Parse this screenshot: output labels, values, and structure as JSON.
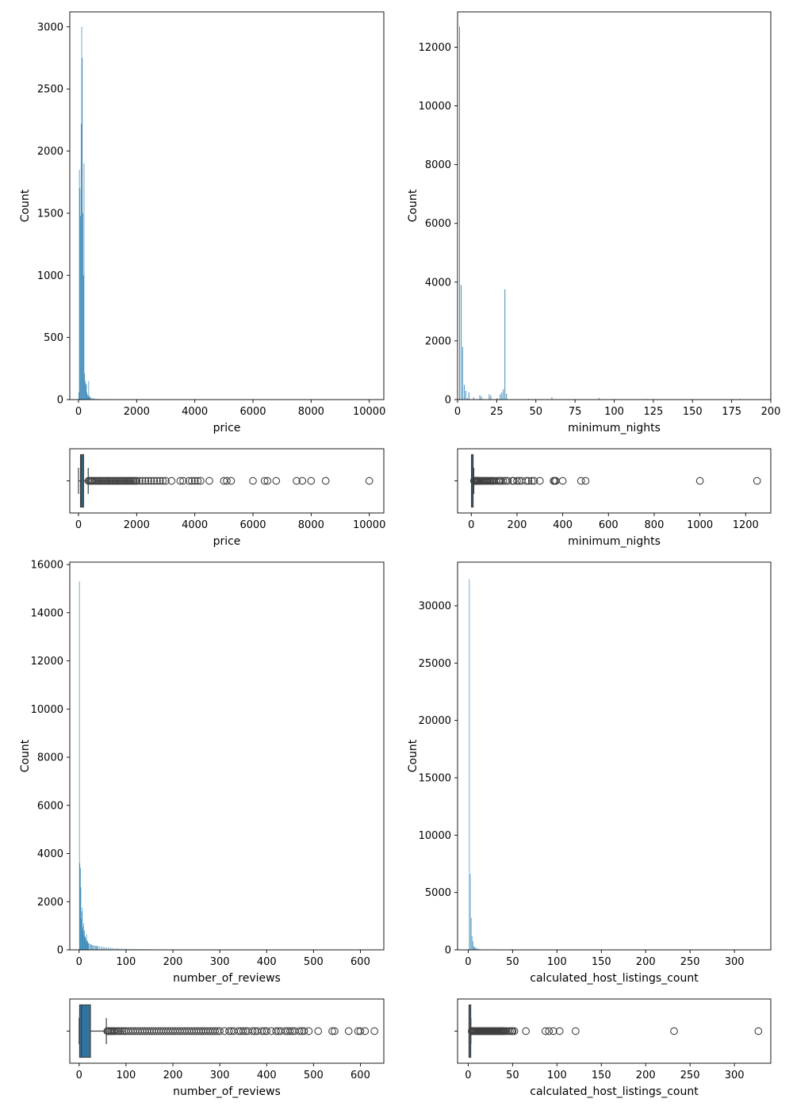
{
  "colors": {
    "bar": "#3b8ab9",
    "box_fill": "#3274a1",
    "box_line": "#3f3f3f",
    "axes": "#000000"
  },
  "chart_data": [
    {
      "id": "price-hist",
      "type": "bar",
      "xlabel": "price",
      "ylabel": "Count",
      "xlim": [
        -300,
        10500
      ],
      "ylim": [
        0,
        3120
      ],
      "xticks": [
        0,
        2000,
        4000,
        6000,
        8000,
        10000
      ],
      "yticks": [
        0,
        500,
        1000,
        1500,
        2000,
        2500,
        3000
      ],
      "bin_width": 20,
      "bins": [
        [
          0,
          60
        ],
        [
          20,
          1850
        ],
        [
          40,
          1700
        ],
        [
          60,
          1480
        ],
        [
          80,
          2220
        ],
        [
          100,
          3000
        ],
        [
          120,
          2750
        ],
        [
          140,
          1500
        ],
        [
          160,
          1000
        ],
        [
          180,
          1900
        ],
        [
          200,
          210
        ],
        [
          220,
          150
        ],
        [
          240,
          120
        ],
        [
          260,
          130
        ],
        [
          280,
          60
        ],
        [
          300,
          40
        ],
        [
          320,
          25
        ],
        [
          340,
          150
        ],
        [
          360,
          30
        ],
        [
          380,
          20
        ],
        [
          400,
          20
        ],
        [
          440,
          12
        ],
        [
          480,
          12
        ],
        [
          520,
          10
        ],
        [
          560,
          6
        ],
        [
          600,
          5
        ],
        [
          660,
          5
        ],
        [
          700,
          6
        ],
        [
          760,
          4
        ],
        [
          860,
          2
        ],
        [
          900,
          4
        ],
        [
          1000,
          3
        ],
        [
          1200,
          2
        ],
        [
          1500,
          1
        ],
        [
          2000,
          1
        ]
      ]
    },
    {
      "id": "nights-hist",
      "type": "bar",
      "xlabel": "minimum_nights",
      "ylabel": "Count",
      "xlim": [
        0,
        200
      ],
      "ylim": [
        0,
        13200
      ],
      "xticks": [
        0,
        25,
        50,
        75,
        100,
        125,
        150,
        175,
        200
      ],
      "yticks": [
        0,
        2000,
        4000,
        6000,
        8000,
        10000,
        12000
      ],
      "bin_width": 0.5,
      "bins": [
        [
          1,
          12700
        ],
        [
          2,
          3900
        ],
        [
          3,
          1800
        ],
        [
          4,
          500
        ],
        [
          5,
          300
        ],
        [
          6,
          50
        ],
        [
          7,
          250
        ],
        [
          10,
          80
        ],
        [
          14,
          150
        ],
        [
          15,
          100
        ],
        [
          20,
          180
        ],
        [
          21,
          130
        ],
        [
          25,
          50
        ],
        [
          27,
          180
        ],
        [
          28,
          250
        ],
        [
          29,
          350
        ],
        [
          30,
          3760
        ],
        [
          31,
          200
        ],
        [
          45,
          25
        ],
        [
          60,
          80
        ],
        [
          90,
          60
        ],
        [
          120,
          20
        ],
        [
          180,
          30
        ]
      ]
    },
    {
      "id": "price-box",
      "type": "box",
      "xlabel": "price",
      "xlim": [
        -300,
        10500
      ],
      "xticks": [
        0,
        2000,
        4000,
        6000,
        8000,
        10000
      ],
      "whisker_low": 0,
      "q1": 69,
      "median": 106,
      "q3": 175,
      "whisker_high": 334,
      "outliers": [
        340,
        380,
        420,
        460,
        500,
        550,
        600,
        650,
        700,
        750,
        800,
        850,
        900,
        950,
        1000,
        1050,
        1100,
        1150,
        1200,
        1250,
        1300,
        1350,
        1400,
        1450,
        1500,
        1550,
        1600,
        1650,
        1700,
        1750,
        1800,
        1850,
        1900,
        1950,
        2000,
        2100,
        2200,
        2300,
        2400,
        2500,
        2600,
        2700,
        2800,
        2900,
        3000,
        3200,
        3500,
        3600,
        3800,
        3900,
        4000,
        4100,
        4200,
        4500,
        5000,
        5100,
        5250,
        6000,
        6400,
        6500,
        6800,
        7500,
        7700,
        8000,
        8500,
        10000
      ]
    },
    {
      "id": "nights-box",
      "type": "box",
      "xlabel": "minimum_nights",
      "xlim": [
        -60,
        1310
      ],
      "xticks": [
        0,
        200,
        400,
        600,
        800,
        1000,
        1200
      ],
      "whisker_low": 1,
      "q1": 1,
      "median": 2,
      "q3": 5,
      "whisker_high": 11,
      "outliers": [
        12,
        14,
        16,
        18,
        20,
        22,
        25,
        28,
        30,
        31,
        35,
        40,
        45,
        50,
        55,
        60,
        65,
        70,
        75,
        80,
        85,
        90,
        95,
        100,
        110,
        120,
        125,
        130,
        140,
        150,
        160,
        180,
        185,
        200,
        210,
        220,
        240,
        250,
        265,
        275,
        300,
        360,
        365,
        370,
        400,
        480,
        500,
        1000,
        1250
      ]
    },
    {
      "id": "reviews-hist",
      "type": "bar",
      "xlabel": "number_of_reviews",
      "ylabel": "Count",
      "xlim": [
        -20,
        650
      ],
      "ylim": [
        0,
        16100
      ],
      "xticks": [
        0,
        100,
        200,
        300,
        400,
        500,
        600
      ],
      "yticks": [
        0,
        2000,
        4000,
        6000,
        8000,
        10000,
        12000,
        14000,
        16000
      ],
      "bin_width": 1,
      "bins": [
        [
          0,
          15300
        ],
        [
          1,
          3600
        ],
        [
          2,
          3400
        ],
        [
          3,
          2600
        ],
        [
          4,
          1300
        ],
        [
          5,
          1600
        ],
        [
          6,
          1750
        ],
        [
          7,
          950
        ],
        [
          8,
          800
        ],
        [
          9,
          1100
        ],
        [
          10,
          600
        ],
        [
          11,
          800
        ],
        [
          12,
          500
        ],
        [
          13,
          550
        ],
        [
          14,
          400
        ],
        [
          15,
          650
        ],
        [
          16,
          350
        ],
        [
          17,
          400
        ],
        [
          18,
          300
        ],
        [
          19,
          280
        ],
        [
          20,
          270
        ],
        [
          22,
          250
        ],
        [
          24,
          230
        ],
        [
          26,
          210
        ],
        [
          28,
          200
        ],
        [
          30,
          190
        ],
        [
          32,
          180
        ],
        [
          34,
          170
        ],
        [
          36,
          160
        ],
        [
          38,
          155
        ],
        [
          40,
          150
        ],
        [
          43,
          140
        ],
        [
          46,
          130
        ],
        [
          49,
          120
        ],
        [
          52,
          110
        ],
        [
          55,
          105
        ],
        [
          58,
          100
        ],
        [
          61,
          95
        ],
        [
          64,
          90
        ],
        [
          67,
          85
        ],
        [
          70,
          80
        ],
        [
          74,
          75
        ],
        [
          78,
          70
        ],
        [
          82,
          65
        ],
        [
          86,
          60
        ],
        [
          90,
          58
        ],
        [
          95,
          55
        ],
        [
          100,
          52
        ],
        [
          105,
          48
        ],
        [
          110,
          45
        ],
        [
          115,
          42
        ],
        [
          120,
          40
        ],
        [
          126,
          38
        ],
        [
          132,
          35
        ],
        [
          138,
          32
        ],
        [
          145,
          30
        ],
        [
          152,
          28
        ],
        [
          160,
          25
        ],
        [
          168,
          22
        ],
        [
          176,
          20
        ],
        [
          185,
          18
        ],
        [
          195,
          16
        ],
        [
          205,
          14
        ],
        [
          215,
          12
        ],
        [
          225,
          10
        ],
        [
          235,
          8
        ],
        [
          245,
          7
        ],
        [
          260,
          6
        ],
        [
          280,
          5
        ],
        [
          300,
          4
        ],
        [
          330,
          3
        ],
        [
          360,
          2
        ],
        [
          400,
          2
        ],
        [
          450,
          1
        ],
        [
          500,
          1
        ]
      ]
    },
    {
      "id": "hosts-hist",
      "type": "bar",
      "xlabel": "calculated_host_listings_count",
      "ylabel": "Count",
      "xlim": [
        -12,
        341
      ],
      "ylim": [
        0,
        33800
      ],
      "xticks": [
        0,
        50,
        100,
        150,
        200,
        250,
        300
      ],
      "yticks": [
        0,
        5000,
        10000,
        15000,
        20000,
        25000,
        30000
      ],
      "bin_width": 0.6,
      "bins": [
        [
          1,
          32300
        ],
        [
          2,
          6600
        ],
        [
          3,
          2800
        ],
        [
          4,
          1200
        ],
        [
          5,
          750
        ],
        [
          6,
          300
        ],
        [
          7,
          250
        ],
        [
          8,
          200
        ],
        [
          9,
          150
        ],
        [
          10,
          100
        ],
        [
          11,
          80
        ],
        [
          12,
          60
        ],
        [
          13,
          50
        ],
        [
          14,
          40
        ],
        [
          15,
          30
        ],
        [
          17,
          20
        ],
        [
          18,
          15
        ],
        [
          20,
          20
        ],
        [
          23,
          15
        ],
        [
          25,
          12
        ],
        [
          28,
          10
        ],
        [
          30,
          10
        ],
        [
          33,
          8
        ],
        [
          37,
          8
        ],
        [
          39,
          8
        ],
        [
          43,
          8
        ],
        [
          47,
          8
        ],
        [
          49,
          8
        ],
        [
          50,
          8
        ],
        [
          52,
          8
        ],
        [
          65,
          10
        ],
        [
          87,
          8
        ],
        [
          91,
          8
        ],
        [
          96,
          8
        ],
        [
          103,
          8
        ],
        [
          121,
          10
        ],
        [
          232,
          12
        ],
        [
          327,
          15
        ]
      ]
    },
    {
      "id": "reviews-box",
      "type": "box",
      "xlabel": "number_of_reviews",
      "xlim": [
        -20,
        650
      ],
      "xticks": [
        0,
        100,
        200,
        300,
        400,
        500,
        600
      ],
      "whisker_low": 0,
      "q1": 1,
      "median": 5,
      "q3": 24,
      "whisker_high": 58,
      "outliers": [
        60,
        62,
        65,
        68,
        70,
        73,
        76,
        80,
        84,
        88,
        92,
        96,
        100,
        105,
        110,
        115,
        120,
        125,
        130,
        135,
        140,
        145,
        150,
        155,
        160,
        165,
        170,
        175,
        180,
        185,
        190,
        195,
        200,
        205,
        210,
        215,
        220,
        225,
        230,
        235,
        240,
        245,
        250,
        255,
        260,
        265,
        270,
        275,
        280,
        285,
        290,
        295,
        300,
        310,
        320,
        325,
        330,
        340,
        345,
        350,
        355,
        360,
        370,
        375,
        380,
        390,
        395,
        400,
        410,
        420,
        425,
        430,
        440,
        445,
        450,
        455,
        460,
        470,
        475,
        480,
        490,
        510,
        540,
        545,
        575,
        595,
        600,
        610,
        630
      ]
    },
    {
      "id": "hosts-box",
      "type": "box",
      "xlabel": "calculated_host_listings_count",
      "xlim": [
        -12,
        341
      ],
      "xticks": [
        0,
        50,
        100,
        150,
        200,
        250,
        300
      ],
      "whisker_low": 1,
      "q1": 1,
      "median": 1,
      "q3": 2,
      "whisker_high": 3,
      "outliers": [
        4,
        5,
        6,
        7,
        8,
        9,
        10,
        11,
        12,
        13,
        14,
        15,
        16,
        17,
        18,
        19,
        20,
        21,
        22,
        23,
        24,
        25,
        26,
        27,
        28,
        29,
        30,
        31,
        32,
        33,
        34,
        35,
        36,
        37,
        38,
        39,
        40,
        41,
        43,
        45,
        47,
        49,
        50,
        52,
        65,
        87,
        91,
        96,
        103,
        121,
        232,
        327
      ]
    }
  ]
}
